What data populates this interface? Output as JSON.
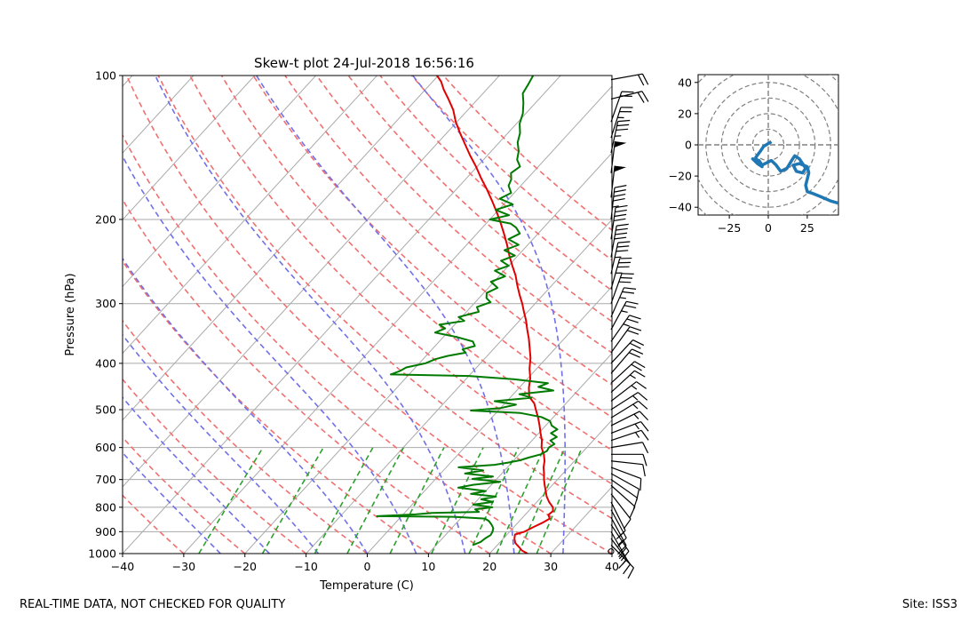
{
  "chart_data": [
    {
      "type": "skewt",
      "title": "Skew-t plot 24-Jul-2018 16:56:16",
      "xlabel": "Temperature (C)",
      "ylabel": "Pressure (hPa)",
      "xlim": [
        -40,
        40
      ],
      "ylim": [
        1000,
        100
      ],
      "y_scale": "log",
      "x_ticks": [
        -40,
        -30,
        -20,
        -10,
        0,
        10,
        20,
        30,
        40
      ],
      "y_ticks": [
        100,
        200,
        300,
        400,
        500,
        600,
        700,
        800,
        900,
        1000
      ],
      "grid": true,
      "colors": {
        "temperature": "#e00000",
        "dewpoint": "#007a00",
        "dry_adiabats": "#f07070",
        "moist_adiabats": "#7070e8",
        "mixing_ratio": "#2ca02c",
        "isotherms": "#aaaaaa"
      },
      "series": [
        {
          "key": "temperature",
          "points": [
            [
              26.2,
              1000
            ],
            [
              24.8,
              985
            ],
            [
              23.9,
              970
            ],
            [
              22.6,
              950
            ],
            [
              21.8,
              930
            ],
            [
              21.3,
              912
            ],
            [
              22.4,
              900
            ],
            [
              23.2,
              880
            ],
            [
              24.1,
              860
            ],
            [
              24.6,
              845
            ],
            [
              23.8,
              830
            ],
            [
              24.0,
              815
            ],
            [
              23.4,
              800
            ],
            [
              22.0,
              780
            ],
            [
              20.8,
              760
            ],
            [
              19.8,
              740
            ],
            [
              18.8,
              720
            ],
            [
              17.8,
              700
            ],
            [
              16.9,
              680
            ],
            [
              15.9,
              660
            ],
            [
              15.1,
              640
            ],
            [
              14.0,
              620
            ],
            [
              12.6,
              600
            ],
            [
              11.6,
              580
            ],
            [
              10.3,
              560
            ],
            [
              9.0,
              540
            ],
            [
              7.6,
              520
            ],
            [
              6.0,
              500
            ],
            [
              4.8,
              485
            ],
            [
              3.0,
              470
            ],
            [
              1.6,
              450
            ],
            [
              0.4,
              430
            ],
            [
              -1.2,
              410
            ],
            [
              -2.6,
              390
            ],
            [
              -4.2,
              372
            ],
            [
              -5.8,
              355
            ],
            [
              -7.4,
              340
            ],
            [
              -9.0,
              325
            ],
            [
              -10.6,
              312
            ],
            [
              -12.1,
              300
            ],
            [
              -13.8,
              288
            ],
            [
              -15.6,
              275
            ],
            [
              -17.4,
              262
            ],
            [
              -19.4,
              250
            ],
            [
              -21.4,
              238
            ],
            [
              -23.4,
              226
            ],
            [
              -25.6,
              214
            ],
            [
              -27.8,
              203
            ],
            [
              -30.0,
              193
            ],
            [
              -32.4,
              183
            ],
            [
              -35.0,
              173
            ],
            [
              -37.6,
              164
            ],
            [
              -40.2,
              155
            ],
            [
              -42.8,
              147
            ],
            [
              -45.4,
              139
            ],
            [
              -47.8,
              132
            ],
            [
              -50.2,
              125
            ],
            [
              -52.4,
              118
            ],
            [
              -54.8,
              112
            ],
            [
              -57.0,
              107
            ],
            [
              -58.6,
              103
            ],
            [
              -60.2,
              100
            ]
          ]
        },
        {
          "key": "dewpoint",
          "points": [
            [
              16.0,
              960
            ],
            [
              16.8,
              945
            ],
            [
              17.0,
              930
            ],
            [
              17.4,
              915
            ],
            [
              17.2,
              900
            ],
            [
              16.8,
              885
            ],
            [
              16.0,
              870
            ],
            [
              15.0,
              855
            ],
            [
              14.0,
              845
            ],
            [
              9.0,
              838
            ],
            [
              -4.0,
              835
            ],
            [
              2.0,
              828
            ],
            [
              4.5,
              822
            ],
            [
              12.0,
              818
            ],
            [
              11.0,
              808
            ],
            [
              13.5,
              800
            ],
            [
              10.0,
              790
            ],
            [
              12.8,
              780
            ],
            [
              10.5,
              770
            ],
            [
              12.5,
              760
            ],
            [
              8.0,
              750
            ],
            [
              10.0,
              740
            ],
            [
              5.0,
              728
            ],
            [
              7.0,
              718
            ],
            [
              11.0,
              708
            ],
            [
              6.0,
              698
            ],
            [
              9.0,
              690
            ],
            [
              4.0,
              680
            ],
            [
              6.5,
              670
            ],
            [
              2.0,
              660
            ],
            [
              7.5,
              652
            ],
            [
              9.5,
              645
            ],
            [
              11.0,
              638
            ],
            [
              12.0,
              630
            ],
            [
              13.5,
              620
            ],
            [
              14.0,
              610
            ],
            [
              13.8,
              600
            ],
            [
              14.2,
              590
            ],
            [
              13.0,
              580
            ],
            [
              13.5,
              570
            ],
            [
              12.0,
              560
            ],
            [
              12.5,
              550
            ],
            [
              11.0,
              540
            ],
            [
              10.0,
              528
            ],
            [
              8.0,
              518
            ],
            [
              4.0,
              508
            ],
            [
              -4.5,
              502
            ],
            [
              0.0,
              496
            ],
            [
              2.0,
              488
            ],
            [
              -2.0,
              480
            ],
            [
              3.5,
              472
            ],
            [
              1.0,
              464
            ],
            [
              6.0,
              456
            ],
            [
              3.0,
              448
            ],
            [
              4.0,
              440
            ],
            [
              -2.0,
              432
            ],
            [
              -10.0,
              425
            ],
            [
              -23.0,
              422
            ],
            [
              -22.0,
              415
            ],
            [
              -21.5,
              408
            ],
            [
              -19.0,
              400
            ],
            [
              -18.0,
              392
            ],
            [
              -16.5,
              386
            ],
            [
              -14.0,
              380
            ],
            [
              -15.0,
              374
            ],
            [
              -13.5,
              368
            ],
            [
              -14.5,
              360
            ],
            [
              -18.0,
              352
            ],
            [
              -22.0,
              345
            ],
            [
              -21.0,
              338
            ],
            [
              -22.5,
              332
            ],
            [
              -19.0,
              326
            ],
            [
              -20.5,
              320
            ],
            [
              -18.0,
              312
            ],
            [
              -19.0,
              305
            ],
            [
              -17.5,
              298
            ],
            [
              -18.8,
              292
            ],
            [
              -19.5,
              285
            ],
            [
              -18.5,
              278
            ],
            [
              -20.5,
              270
            ],
            [
              -19.0,
              263
            ],
            [
              -21.5,
              256
            ],
            [
              -20.0,
              250
            ],
            [
              -22.0,
              244
            ],
            [
              -20.5,
              238
            ],
            [
              -23.0,
              232
            ],
            [
              -21.5,
              226
            ],
            [
              -24.0,
              220
            ],
            [
              -23.0,
              214
            ],
            [
              -24.5,
              208
            ],
            [
              -26.0,
              204
            ],
            [
              -30.0,
              200
            ],
            [
              -27.5,
              196
            ],
            [
              -30.5,
              191
            ],
            [
              -28.5,
              186
            ],
            [
              -31.5,
              181
            ],
            [
              -30.5,
              176
            ],
            [
              -32.0,
              170
            ],
            [
              -32.5,
              165
            ],
            [
              -33.5,
              160
            ],
            [
              -33.0,
              155
            ],
            [
              -34.5,
              150
            ],
            [
              -35.5,
              144
            ],
            [
              -37.0,
              138
            ],
            [
              -38.0,
              132
            ],
            [
              -39.5,
              126
            ],
            [
              -40.5,
              120
            ],
            [
              -42.0,
              114
            ],
            [
              -43.5,
              109
            ],
            [
              -44.0,
              104
            ],
            [
              -44.5,
              100
            ]
          ]
        }
      ],
      "wind_barbs": [
        {
          "p": 990,
          "u": -2,
          "v": 1
        },
        {
          "p": 960,
          "u": -6,
          "v": 6
        },
        {
          "p": 930,
          "u": -9,
          "v": 12
        },
        {
          "p": 900,
          "u": -8,
          "v": 14
        },
        {
          "p": 870,
          "u": -10,
          "v": 15
        },
        {
          "p": 840,
          "u": -7,
          "v": 13
        },
        {
          "p": 810,
          "u": -6,
          "v": 11
        },
        {
          "p": 780,
          "u": -5,
          "v": 10
        },
        {
          "p": 750,
          "u": -7,
          "v": 9
        },
        {
          "p": 720,
          "u": -9,
          "v": 8
        },
        {
          "p": 700,
          "u": -10,
          "v": 7
        },
        {
          "p": 680,
          "u": -9,
          "v": 5
        },
        {
          "p": 660,
          "u": -8,
          "v": 3
        },
        {
          "p": 640,
          "u": -9,
          "v": 1
        },
        {
          "p": 620,
          "u": -10,
          "v": 0
        },
        {
          "p": 600,
          "u": -12,
          "v": -2
        },
        {
          "p": 580,
          "u": -12,
          "v": -4
        },
        {
          "p": 560,
          "u": -13,
          "v": -5
        },
        {
          "p": 540,
          "u": -12,
          "v": -6
        },
        {
          "p": 520,
          "u": -13,
          "v": -8
        },
        {
          "p": 500,
          "u": -14,
          "v": -9
        },
        {
          "p": 480,
          "u": -13,
          "v": -10
        },
        {
          "p": 460,
          "u": -12,
          "v": -11
        },
        {
          "p": 440,
          "u": -13,
          "v": -12
        },
        {
          "p": 420,
          "u": -12,
          "v": -14
        },
        {
          "p": 400,
          "u": -14,
          "v": -15
        },
        {
          "p": 380,
          "u": -13,
          "v": -18
        },
        {
          "p": 360,
          "u": -14,
          "v": -20
        },
        {
          "p": 340,
          "u": -12,
          "v": -22
        },
        {
          "p": 320,
          "u": -11,
          "v": -25
        },
        {
          "p": 300,
          "u": -10,
          "v": -28
        },
        {
          "p": 280,
          "u": -9,
          "v": -32
        },
        {
          "p": 260,
          "u": -8,
          "v": -36
        },
        {
          "p": 240,
          "u": -7,
          "v": -40
        },
        {
          "p": 220,
          "u": -6,
          "v": -42
        },
        {
          "p": 200,
          "u": -5,
          "v": -45
        },
        {
          "p": 180,
          "u": -6,
          "v": -52
        },
        {
          "p": 160,
          "u": -6,
          "v": -48
        },
        {
          "p": 145,
          "u": -7,
          "v": -32
        },
        {
          "p": 135,
          "u": -8,
          "v": -25
        },
        {
          "p": 125,
          "u": -7,
          "v": -20
        },
        {
          "p": 112,
          "u": -20,
          "v": -5
        },
        {
          "p": 102,
          "u": -22,
          "v": -4
        }
      ]
    },
    {
      "type": "hodograph",
      "xlim": [
        -45,
        45
      ],
      "ylim": [
        -45,
        45
      ],
      "x_ticks": [
        -25,
        0,
        25
      ],
      "y_ticks": [
        40,
        20,
        0,
        -20,
        -40
      ],
      "ring_interval": 10,
      "color": "#1f77b4",
      "points": [
        [
          2,
          2
        ],
        [
          -3,
          -1
        ],
        [
          -5,
          -4
        ],
        [
          -8,
          -8
        ],
        [
          -7,
          -12
        ],
        [
          -4,
          -14
        ],
        [
          -8,
          -11
        ],
        [
          -10,
          -9
        ],
        [
          -6,
          -10
        ],
        [
          -4,
          -13
        ],
        [
          -2,
          -12
        ],
        [
          2,
          -10
        ],
        [
          5,
          -13
        ],
        [
          8,
          -17
        ],
        [
          12,
          -15
        ],
        [
          15,
          -10
        ],
        [
          17,
          -7
        ],
        [
          20,
          -9
        ],
        [
          22,
          -12
        ],
        [
          24,
          -15
        ],
        [
          22,
          -18
        ],
        [
          18,
          -17
        ],
        [
          16,
          -13
        ],
        [
          20,
          -12
        ],
        [
          25,
          -14
        ],
        [
          26,
          -18
        ],
        [
          25,
          -22
        ],
        [
          24,
          -26
        ],
        [
          25,
          -30
        ],
        [
          28,
          -31
        ],
        [
          33,
          -33
        ],
        [
          40,
          -36
        ],
        [
          47,
          -38
        ]
      ]
    }
  ],
  "footer": {
    "left": "REAL-TIME DATA, NOT CHECKED FOR QUALITY",
    "right": "Site: ISS3"
  }
}
